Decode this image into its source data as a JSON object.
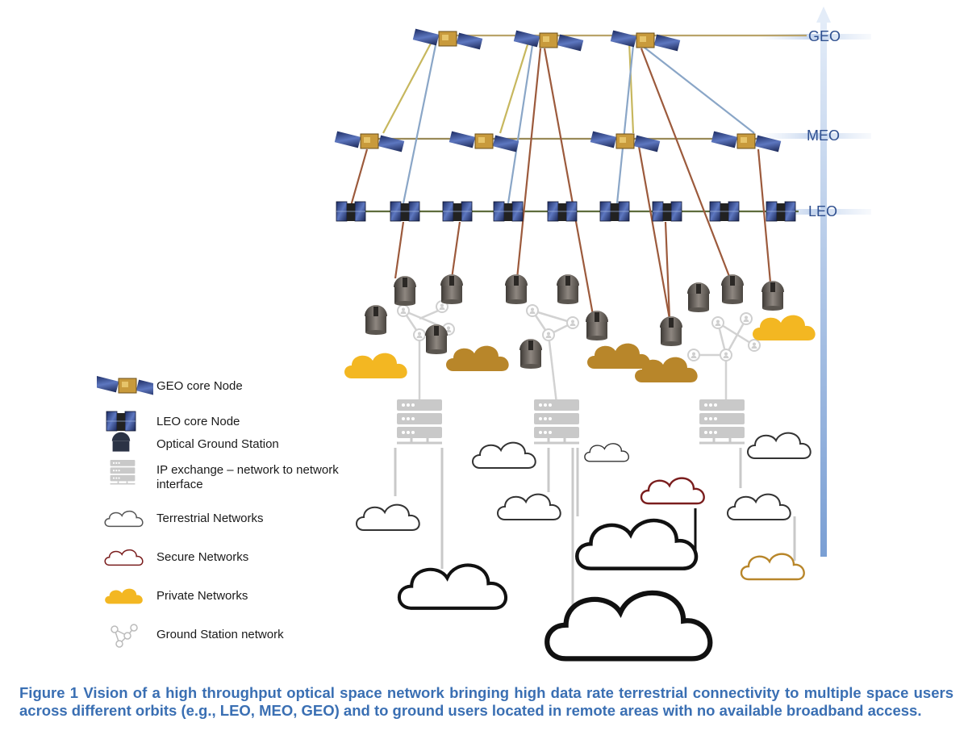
{
  "orbits": {
    "geo": "GEO",
    "meo": "MEO",
    "leo": "LEO"
  },
  "legend": {
    "items": [
      {
        "label": "GEO core Node",
        "icon": "geo-satellite-icon"
      },
      {
        "label": "LEO core Node",
        "icon": "leo-satellite-icon"
      },
      {
        "label": "Optical Ground Station",
        "icon": "ground-station-icon"
      },
      {
        "label": "IP exchange – network to network interface",
        "icon": "server-rack-icon"
      },
      {
        "label": "Terrestrial Networks",
        "icon": "terrestrial-cloud-icon"
      },
      {
        "label": "Secure Networks",
        "icon": "secure-cloud-icon"
      },
      {
        "label": "Private Networks",
        "icon": "private-cloud-icon"
      },
      {
        "label": "Ground Station network",
        "icon": "network-graph-icon"
      }
    ]
  },
  "caption": "Figure 1 Vision of a high throughput optical space network bringing high data rate terrestrial connectivity to multiple space users across different orbits (e.g., LEO, MEO, GEO) and to ground users located in remote areas with no available broadband access.",
  "colors": {
    "arrow": "#a9c2e4",
    "orbitLabel": "#2e4f8f",
    "private": "#f3b722",
    "privateDark": "#b8862a",
    "secure": "#7a1d1d",
    "caption": "#3a6fb3"
  }
}
